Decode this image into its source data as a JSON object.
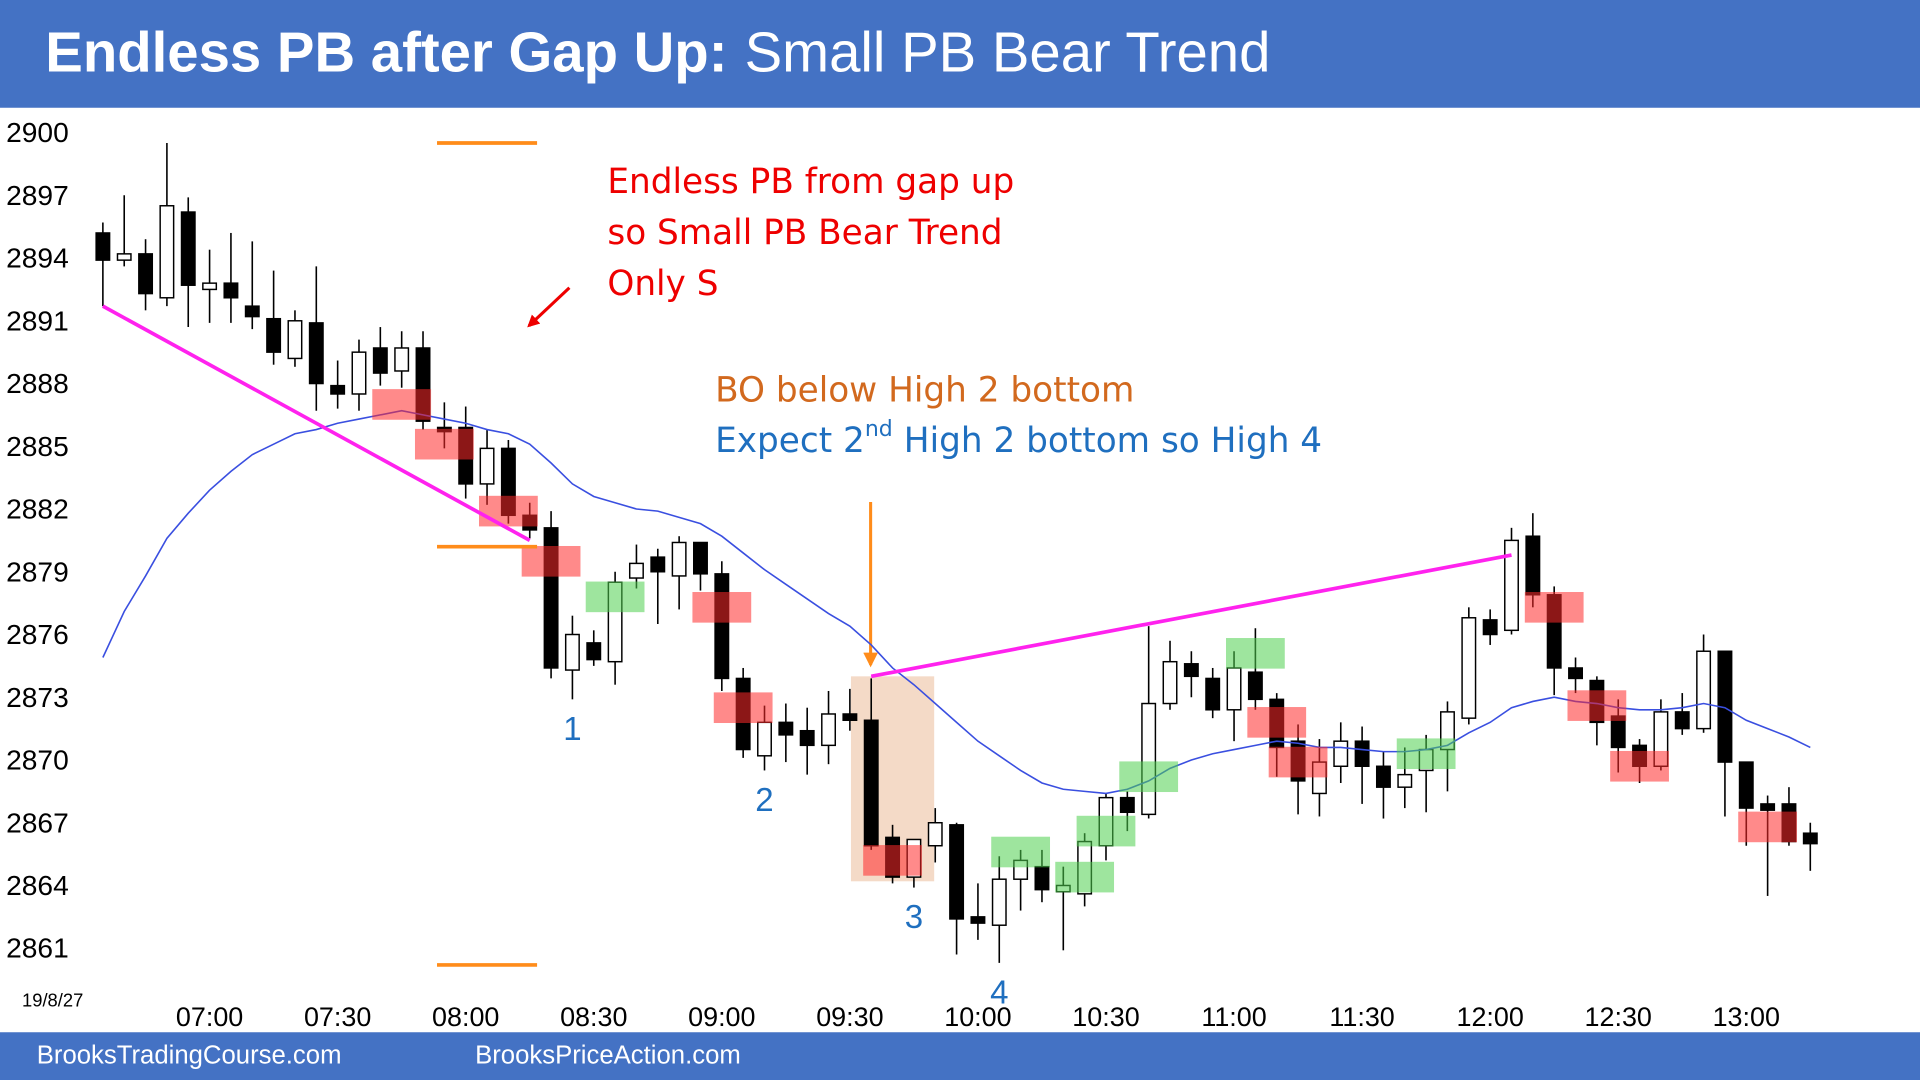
{
  "chart_data": {
    "type": "candlestick",
    "title_bold": "Endless PB after Gap Up:",
    "title_rest": "Small PB Bear Trend",
    "date_label": "19/8/27",
    "categories": [
      null,
      null,
      null,
      null,
      null,
      "07:00",
      null,
      null,
      null,
      null,
      null,
      "07:30",
      null,
      null,
      null,
      null,
      null,
      "08:00",
      null,
      null,
      null,
      null,
      null,
      "08:30",
      null,
      null,
      null,
      null,
      null,
      "09:00",
      null,
      null,
      null,
      null,
      null,
      "09:30",
      null,
      null,
      null,
      null,
      null,
      "10:00",
      null,
      null,
      null,
      null,
      null,
      "10:30",
      null,
      null,
      null,
      null,
      null,
      "11:00",
      null,
      null,
      null,
      null,
      null,
      "11:30",
      null,
      null,
      null,
      null,
      null,
      "12:00",
      null,
      null,
      null,
      null,
      null,
      "12:30",
      null,
      null,
      null,
      null,
      null,
      "13:00",
      null,
      null,
      null
    ],
    "open": [
      2895.3,
      2894.0,
      2894.3,
      2892.2,
      2896.3,
      2892.6,
      2892.9,
      2891.8,
      2891.2,
      2889.3,
      2891.0,
      2888.0,
      2887.6,
      2889.8,
      2888.7,
      2889.8,
      2886.0,
      2886.0,
      2883.3,
      2885.0,
      2881.8,
      2881.2,
      2874.4,
      2875.7,
      2874.8,
      2878.8,
      2879.8,
      2878.9,
      2880.5,
      2879.0,
      2874.0,
      2870.3,
      2871.9,
      2871.5,
      2870.8,
      2872.3,
      2872.0,
      2866.4,
      2864.5,
      2866.0,
      2867.0,
      2862.6,
      2862.2,
      2864.4,
      2865.0,
      2863.8,
      2863.7,
      2866.0,
      2868.3,
      2867.5,
      2872.8,
      2874.7,
      2874.0,
      2872.5,
      2874.3,
      2873.0,
      2871.0,
      2868.5,
      2869.8,
      2871.0,
      2869.8,
      2868.8,
      2869.6,
      2870.6,
      2872.1,
      2876.8,
      2876.3,
      2880.8,
      2878.0,
      2874.5,
      2873.9,
      2872.2,
      2870.8,
      2869.8,
      2872.4,
      2871.6,
      2875.3,
      2870.0,
      2868.0,
      2868.0,
      2866.6
    ],
    "high": [
      2895.8,
      2897.1,
      2895.0,
      2899.6,
      2897.0,
      2894.5,
      2895.3,
      2894.9,
      2893.5,
      2891.6,
      2893.7,
      2889.2,
      2890.2,
      2890.8,
      2890.6,
      2890.6,
      2887.2,
      2887.0,
      2885.9,
      2885.4,
      2882.4,
      2882.0,
      2877.0,
      2876.3,
      2879.1,
      2880.4,
      2880.2,
      2880.8,
      2880.5,
      2879.6,
      2874.5,
      2872.7,
      2872.8,
      2872.6,
      2873.4,
      2873.5,
      2874.0,
      2867.0,
      2866.3,
      2867.8,
      2867.1,
      2864.2,
      2865.5,
      2865.8,
      2865.8,
      2865.0,
      2866.6,
      2868.5,
      2868.6,
      2876.5,
      2875.8,
      2875.3,
      2874.5,
      2875.3,
      2876.4,
      2873.3,
      2871.8,
      2871.1,
      2871.9,
      2871.7,
      2870.5,
      2870.7,
      2871.3,
      2872.9,
      2877.4,
      2877.3,
      2881.2,
      2881.9,
      2878.4,
      2875.0,
      2874.1,
      2873.0,
      2871.1,
      2873.0,
      2873.3,
      2876.1,
      2875.3,
      2870.0,
      2868.4,
      2868.8,
      2867.1
    ],
    "low": [
      2891.8,
      2893.7,
      2891.6,
      2891.8,
      2890.8,
      2891.0,
      2891.0,
      2890.7,
      2889.0,
      2888.9,
      2886.8,
      2886.9,
      2886.8,
      2888.0,
      2887.9,
      2885.9,
      2885.0,
      2882.6,
      2882.3,
      2881.4,
      2880.7,
      2874.0,
      2873.0,
      2874.6,
      2873.7,
      2878.3,
      2876.6,
      2877.3,
      2878.2,
      2873.4,
      2870.2,
      2869.6,
      2870.0,
      2869.4,
      2869.9,
      2871.5,
      2865.8,
      2864.2,
      2864.0,
      2865.2,
      2860.8,
      2861.5,
      2860.4,
      2862.9,
      2863.3,
      2861.0,
      2863.1,
      2865.3,
      2866.7,
      2867.3,
      2872.5,
      2873.1,
      2872.1,
      2871.0,
      2872.5,
      2869.3,
      2867.5,
      2867.4,
      2869.0,
      2868.0,
      2867.3,
      2867.8,
      2867.6,
      2868.6,
      2871.8,
      2875.6,
      2876.1,
      2877.4,
      2873.2,
      2873.3,
      2870.8,
      2869.5,
      2869.0,
      2869.6,
      2871.3,
      2871.4,
      2867.4,
      2866.0,
      2863.6,
      2866.0,
      2864.8
    ],
    "close": [
      2894.0,
      2894.3,
      2892.4,
      2896.6,
      2892.8,
      2892.9,
      2892.2,
      2891.3,
      2889.6,
      2891.1,
      2888.1,
      2887.6,
      2889.6,
      2888.6,
      2889.8,
      2886.3,
      2885.8,
      2883.3,
      2885.0,
      2881.8,
      2881.1,
      2874.5,
      2876.1,
      2874.9,
      2878.6,
      2879.5,
      2879.1,
      2880.5,
      2879.0,
      2874.0,
      2870.6,
      2871.9,
      2871.3,
      2870.8,
      2872.3,
      2872.0,
      2866.0,
      2864.5,
      2866.3,
      2867.1,
      2862.5,
      2862.3,
      2864.4,
      2865.3,
      2863.9,
      2864.1,
      2866.2,
      2868.3,
      2867.6,
      2872.8,
      2874.8,
      2874.1,
      2872.5,
      2874.5,
      2873.0,
      2870.7,
      2869.1,
      2870.0,
      2871.0,
      2869.8,
      2868.8,
      2869.4,
      2870.6,
      2872.4,
      2876.9,
      2876.1,
      2880.6,
      2878.0,
      2874.5,
      2874.0,
      2871.9,
      2870.7,
      2869.8,
      2872.4,
      2871.6,
      2875.3,
      2870.0,
      2867.8,
      2867.7,
      2866.2,
      2866.1
    ],
    "ma": {
      "color": "#3a4fe0",
      "values": [
        2875.0,
        2877.2,
        2878.9,
        2880.7,
        2881.9,
        2883.0,
        2883.9,
        2884.7,
        2885.2,
        2885.7,
        2885.9,
        2886.2,
        2886.4,
        2886.6,
        2886.8,
        2886.6,
        2886.4,
        2886.2,
        2885.9,
        2885.7,
        2885.2,
        2884.3,
        2883.3,
        2882.7,
        2882.4,
        2882.1,
        2882.0,
        2881.7,
        2881.4,
        2880.8,
        2880.0,
        2879.2,
        2878.5,
        2877.8,
        2877.1,
        2876.5,
        2875.6,
        2874.5,
        2873.7,
        2872.8,
        2871.9,
        2871.0,
        2870.3,
        2869.6,
        2869.0,
        2868.7,
        2868.6,
        2868.5,
        2868.7,
        2869.1,
        2869.7,
        2870.1,
        2870.4,
        2870.6,
        2870.8,
        2871.0,
        2870.9,
        2870.7,
        2870.7,
        2870.6,
        2870.5,
        2870.5,
        2870.6,
        2870.8,
        2871.4,
        2871.9,
        2872.6,
        2872.9,
        2873.1,
        2872.9,
        2872.8,
        2872.6,
        2872.5,
        2872.5,
        2872.6,
        2872.8,
        2872.6,
        2872.0,
        2871.6,
        2871.2,
        2870.7
      ]
    },
    "ylim": [
      2859.6,
      2900.8
    ],
    "yticks": [
      2861,
      2864,
      2867,
      2870,
      2873,
      2876,
      2879,
      2882,
      2885,
      2888,
      2891,
      2894,
      2897,
      2900
    ],
    "highlights": [
      {
        "bar": 14,
        "price": 2887.1,
        "color": "#ff2a2a"
      },
      {
        "bar": 16,
        "price": 2885.2,
        "color": "#ff2a2a"
      },
      {
        "bar": 19,
        "price": 2882.0,
        "color": "#ff2a2a"
      },
      {
        "bar": 21,
        "price": 2879.6,
        "color": "#ff2a2a"
      },
      {
        "bar": 29,
        "price": 2877.4,
        "color": "#ff2a2a"
      },
      {
        "bar": 30,
        "price": 2872.6,
        "color": "#ff2a2a"
      },
      {
        "bar": 37,
        "price": 2865.3,
        "color": "#ff2a2a"
      },
      {
        "bar": 55,
        "price": 2871.9,
        "color": "#ff2a2a"
      },
      {
        "bar": 56,
        "price": 2870.0,
        "color": "#ff2a2a"
      },
      {
        "bar": 68,
        "price": 2877.4,
        "color": "#ff2a2a"
      },
      {
        "bar": 70,
        "price": 2872.7,
        "color": "#ff2a2a"
      },
      {
        "bar": 72,
        "price": 2869.8,
        "color": "#ff2a2a"
      },
      {
        "bar": 78,
        "price": 2866.9,
        "color": "#ff2a2a"
      },
      {
        "bar": 24,
        "price": 2877.9,
        "color": "#4fcf4f"
      },
      {
        "bar": 43,
        "price": 2865.7,
        "color": "#4fcf4f"
      },
      {
        "bar": 46,
        "price": 2864.5,
        "color": "#4fcf4f"
      },
      {
        "bar": 47,
        "price": 2866.7,
        "color": "#4fcf4f"
      },
      {
        "bar": 49,
        "price": 2869.3,
        "color": "#4fcf4f"
      },
      {
        "bar": 54,
        "price": 2875.2,
        "color": "#4fcf4f"
      },
      {
        "bar": 62,
        "price": 2870.4,
        "color": "#4fcf4f"
      }
    ],
    "zone": {
      "start": 36,
      "end": 38,
      "top": 2874.1,
      "bottom": 2864.3,
      "color": "#f2d3bd"
    },
    "trend_lines": [
      {
        "start": 0,
        "end": 20,
        "from": 2891.8,
        "to": 2880.6,
        "color": "#ff22ee"
      },
      {
        "start": 36,
        "end": 66,
        "from": 2874.1,
        "to": 2879.9,
        "color": "#ff22ee"
      }
    ],
    "levels": [
      {
        "start": 16,
        "end": 20,
        "value": 2899.6,
        "color": "#ff8c1a"
      },
      {
        "start": 16,
        "end": 20,
        "value": 2880.3,
        "color": "#ff8c1a"
      },
      {
        "start": 16,
        "end": 20,
        "value": 2860.3,
        "color": "#ff8c1a"
      }
    ],
    "bar_labels": [
      {
        "bar": 22,
        "text": "1"
      },
      {
        "bar": 31,
        "text": "2"
      },
      {
        "bar": 38,
        "text": "3"
      },
      {
        "bar": 42,
        "text": "4"
      }
    ],
    "bar_label_color": "#1f6fbf",
    "annotations": [
      {
        "lines": [
          "Endless PB from gap up",
          "so Small PB Bear Trend",
          "Only S"
        ],
        "color": "#ee0000"
      },
      {
        "lines": [
          "BO below High 2 bottom"
        ],
        "color": "#d2691e"
      },
      {
        "parts": [
          "Expect 2",
          "nd",
          "High 2 bottom so High 4"
        ],
        "color": "#1f6fbf"
      }
    ]
  },
  "footer": {
    "left": "BrooksTradingCourse.com",
    "right": "BrooksPriceAction.com"
  }
}
